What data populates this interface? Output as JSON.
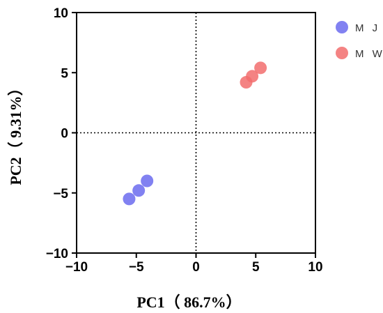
{
  "chart_data": {
    "type": "scatter",
    "xlabel": "PC1（ 86.7%）",
    "ylabel": "PC2（ 9.31%）",
    "xlim": [
      -10,
      10
    ],
    "ylim": [
      -10,
      10
    ],
    "xticks": [
      -10,
      -5,
      0,
      5,
      10
    ],
    "yticks": [
      -10,
      -5,
      0,
      5,
      10
    ],
    "xtick_labels": [
      "−10",
      "−5",
      "0",
      "5",
      "10"
    ],
    "ytick_labels": [
      "−10",
      "−5",
      "0",
      "5",
      "10"
    ],
    "grid": false,
    "reference_lines": [
      {
        "axis": "x",
        "value": 0,
        "style": "dotted"
      },
      {
        "axis": "y",
        "value": 0,
        "style": "dotted"
      }
    ],
    "legend_position": "top-right, outside",
    "series": [
      {
        "name": "M J",
        "color": "#6b6bef",
        "points": [
          {
            "x": -5.6,
            "y": -5.5
          },
          {
            "x": -4.8,
            "y": -4.8
          },
          {
            "x": -4.1,
            "y": -4.0
          }
        ]
      },
      {
        "name": "M W",
        "color": "#f26d6d",
        "points": [
          {
            "x": 4.2,
            "y": 4.2
          },
          {
            "x": 4.7,
            "y": 4.7
          },
          {
            "x": 5.4,
            "y": 5.4
          }
        ]
      }
    ]
  }
}
